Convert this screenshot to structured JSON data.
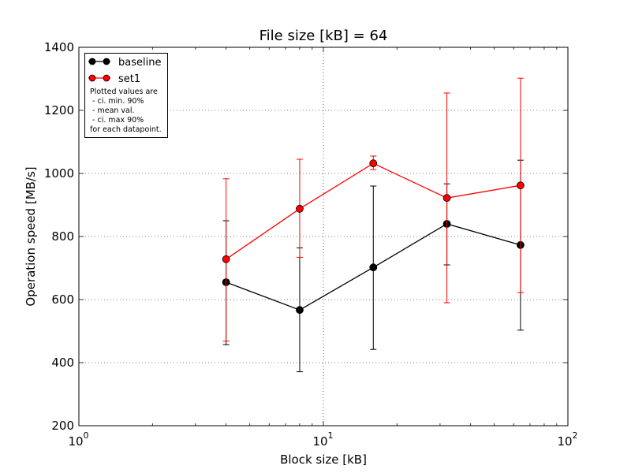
{
  "chart_data": {
    "type": "line",
    "title": "File size [kB] = 64",
    "xlabel": "Block size [kB]",
    "ylabel": "Operation speed [MB/s]",
    "xscale": "log",
    "xlim": [
      1,
      100
    ],
    "ylim": [
      200,
      1400
    ],
    "x_ticks": [
      {
        "value": 1,
        "base": "10",
        "exp": "0"
      },
      {
        "value": 10,
        "base": "10",
        "exp": "1"
      },
      {
        "value": 100,
        "base": "10",
        "exp": "2"
      }
    ],
    "y_ticks": [
      200,
      400,
      600,
      800,
      1000,
      1200,
      1400
    ],
    "grid": true,
    "legend_position": "top-left",
    "legend_note": [
      "Plotted values are",
      " - ci. min. 90%",
      " - mean val.",
      " - ci. max 90%",
      "for each datapoint."
    ],
    "x": [
      4,
      8,
      16,
      32,
      64
    ],
    "series": [
      {
        "name": "baseline",
        "color": "#000000",
        "values": [
          655,
          567,
          702,
          840,
          773
        ],
        "ci_low": [
          457,
          371,
          442,
          710,
          503
        ],
        "ci_high": [
          850,
          764,
          960,
          967,
          1042
        ]
      },
      {
        "name": "set1",
        "color": "#ff0000",
        "values": [
          728,
          888,
          1032,
          922,
          962
        ],
        "ci_low": [
          468,
          734,
          1012,
          590,
          622
        ],
        "ci_high": [
          983,
          1045,
          1055,
          1255,
          1302
        ]
      }
    ]
  }
}
